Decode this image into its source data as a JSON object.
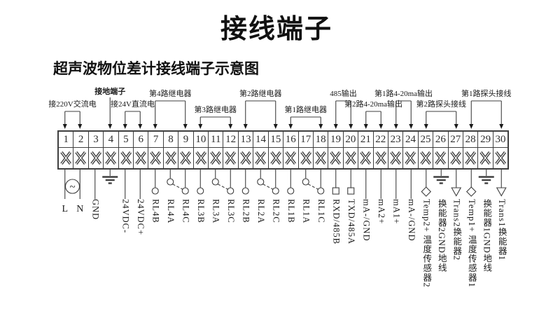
{
  "page": {
    "title": "接线端子",
    "subtitle": "超声波物位差计接线端子示意图"
  },
  "colors": {
    "ink": "#1a1a1a",
    "line": "#3f3f3f",
    "background": "#ffffff"
  },
  "diagram": {
    "ac_glyph": "~",
    "top_groups": [
      {
        "label": "接220V交流电",
        "from": 1,
        "to": 2,
        "level": "mid",
        "bold": false
      },
      {
        "label": "接地端子",
        "from": 4,
        "to": 4,
        "level": "single",
        "bold": true
      },
      {
        "label": "接24V直流电",
        "from": 5,
        "to": 6,
        "level": "mid",
        "bold": false
      },
      {
        "label": "第4路继电器",
        "from": 7,
        "to": 9,
        "level": "high",
        "bold": false
      },
      {
        "label": "第3路继电器",
        "from": 10,
        "to": 12,
        "level": "low",
        "bold": false
      },
      {
        "label": "第2路继电器",
        "from": 13,
        "to": 15,
        "level": "high",
        "bold": false
      },
      {
        "label": "第1路继电器",
        "from": 16,
        "to": 18,
        "level": "low",
        "bold": false
      },
      {
        "label": "485输出",
        "from": 19,
        "to": 20,
        "level": "high",
        "bold": false
      },
      {
        "label": "第2路4-20ma输出",
        "from": 21,
        "to": 22,
        "level": "mid",
        "bold": false
      },
      {
        "label": "第1路4-20ma输出",
        "from": 23,
        "to": 24,
        "level": "high",
        "bold": false
      },
      {
        "label": "第2路探头接线",
        "from": 25,
        "to": 27,
        "level": "mid",
        "bold": false
      },
      {
        "label": "第1路探头接线",
        "from": 28,
        "to": 30,
        "level": "high",
        "bold": false
      }
    ],
    "terminals": [
      {
        "num": "1",
        "symbol": "line",
        "label": "L",
        "orient": "h"
      },
      {
        "num": "2",
        "symbol": "line",
        "label": "N",
        "orient": "h"
      },
      {
        "num": "3",
        "symbol": "line",
        "label": "GND"
      },
      {
        "num": "4",
        "symbol": "earth",
        "label": ""
      },
      {
        "num": "5",
        "symbol": "line",
        "label": "24VDC-"
      },
      {
        "num": "6",
        "symbol": "line",
        "label": "24VDC+"
      },
      {
        "num": "7",
        "symbol": "relay-b",
        "label": "RL4B"
      },
      {
        "num": "8",
        "symbol": "relay-a",
        "label": "RL4A"
      },
      {
        "num": "9",
        "symbol": "relay-c",
        "label": "RL4C"
      },
      {
        "num": "10",
        "symbol": "relay-b",
        "label": "RL3B"
      },
      {
        "num": "11",
        "symbol": "relay-a",
        "label": "RL3A"
      },
      {
        "num": "12",
        "symbol": "relay-c",
        "label": "RL3C"
      },
      {
        "num": "13",
        "symbol": "relay-b",
        "label": "RL2B"
      },
      {
        "num": "14",
        "symbol": "relay-a",
        "label": "RL2A"
      },
      {
        "num": "15",
        "symbol": "relay-c",
        "label": "RL2C"
      },
      {
        "num": "16",
        "symbol": "relay-b",
        "label": "RL1B"
      },
      {
        "num": "17",
        "symbol": "relay-a",
        "label": "RL1A"
      },
      {
        "num": "18",
        "symbol": "relay-c",
        "label": "RL1C"
      },
      {
        "num": "19",
        "symbol": "square",
        "label": "RXD/485B"
      },
      {
        "num": "20",
        "symbol": "square",
        "label": "TXD/485A"
      },
      {
        "num": "21",
        "symbol": "line",
        "label": "mA-/GND"
      },
      {
        "num": "22",
        "symbol": "line",
        "label": "mA2+"
      },
      {
        "num": "23",
        "symbol": "line",
        "label": "mA1+"
      },
      {
        "num": "24",
        "symbol": "line",
        "label": "mA-/GND"
      },
      {
        "num": "25",
        "symbol": "diamond",
        "label": "Temp2+ 温度传感器2"
      },
      {
        "num": "26",
        "symbol": "earth",
        "label": "换能器2GND地线"
      },
      {
        "num": "27",
        "symbol": "triangle",
        "label": "Trans2换能器2"
      },
      {
        "num": "28",
        "symbol": "diamond",
        "label": "Temp1+ 温度传感器1"
      },
      {
        "num": "29",
        "symbol": "earth",
        "label": "换能器1GND地线"
      },
      {
        "num": "30",
        "symbol": "triangle",
        "label": "Trans1换能器1"
      }
    ]
  }
}
